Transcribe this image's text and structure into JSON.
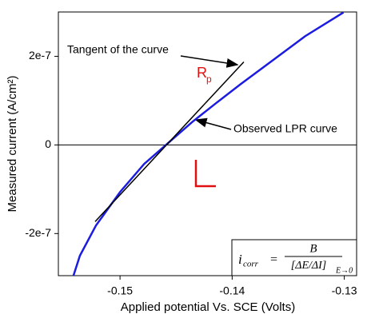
{
  "chart_data": {
    "type": "line",
    "x_label": "Applied potential Vs. SCE (Volts)",
    "y_label": "Measured current (A/cm²)",
    "xlim": [
      -0.1555,
      -0.1289
    ],
    "xticks": [
      -0.15,
      -0.14,
      -0.13
    ],
    "ylim": [
      -2.95e-07,
      3e-07
    ],
    "yticks": [
      2e-07,
      0,
      -2e-07
    ],
    "zero_line": true,
    "grid": false,
    "series": [
      {
        "name": "Observed LPR curve",
        "color": "#1c1ce0",
        "x": [
          -0.15416,
          -0.15358,
          -0.15215,
          -0.15,
          -0.14785,
          -0.14591,
          -0.14355,
          -0.1414,
          -0.13925,
          -0.13638,
          -0.13351,
          -0.13007
        ],
        "values": [
          -2.955e-07,
          -2.5e-07,
          -1.82e-07,
          -1.063e-07,
          -4.3e-08,
          0,
          5.2e-08,
          9.5e-08,
          1.37e-07,
          1.91e-07,
          2.45e-07,
          2.99e-07
        ]
      },
      {
        "name": "Tangent of the curve",
        "color": "#000000",
        "x": [
          -0.15222,
          -0.13896
        ],
        "values": [
          -1.73e-07,
          1.874e-07
        ]
      }
    ],
    "rp_label": {
      "text": "R",
      "subscript": "p"
    },
    "formula": {
      "lhs": "i",
      "lhs_sub": "corr",
      "equals": "=",
      "numerator": "B",
      "denominator": "[ΔE/ΔI]",
      "denominator_sub": "E→0"
    }
  }
}
